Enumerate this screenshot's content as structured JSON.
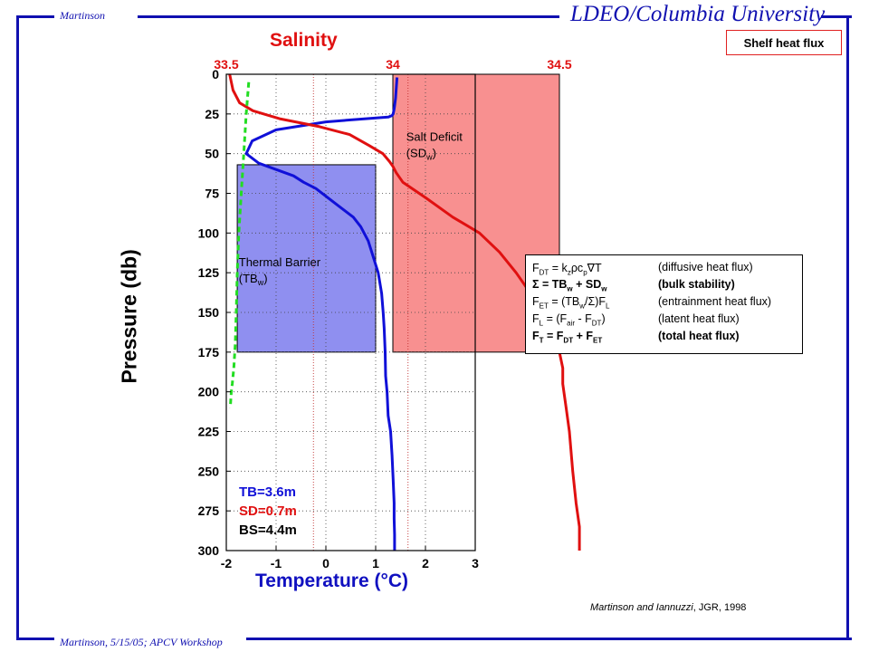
{
  "header": {
    "author": "Martinson",
    "institution": "LDEO/Columbia University",
    "tag": "Shelf heat flux"
  },
  "footer": {
    "text": "Martinson, 5/15/05; APCV Workshop"
  },
  "citation": {
    "authors": "Martinson and Iannuzzi",
    "journal_year": ", JGR, 1998"
  },
  "equations": [
    {
      "lhs_parts": [
        "F",
        {
          "sub": "DT"
        },
        "  =  k",
        {
          "sub": "z"
        },
        "ρc",
        {
          "sub": "p"
        },
        "∇T"
      ],
      "rhs": "(diffusive heat flux)",
      "bold": false
    },
    {
      "lhs_parts": [
        "Σ  =  TB",
        {
          "sub": "w"
        },
        " + SD",
        {
          "sub": "w"
        }
      ],
      "rhs": "(bulk stability)",
      "bold": true
    },
    {
      "lhs_parts": [
        "F",
        {
          "sub": "ET"
        },
        "  =  (TB",
        {
          "sub": "w"
        },
        "/Σ)F",
        {
          "sub": "L"
        }
      ],
      "rhs": "(entrainment heat flux)",
      "bold": false
    },
    {
      "lhs_parts": [
        "F",
        {
          "sub": "L"
        },
        "  =  (F",
        {
          "sub": "air"
        },
        " - F",
        {
          "sub": "DT"
        },
        ")"
      ],
      "rhs": "(latent heat flux)",
      "bold": false
    },
    {
      "lhs_parts": [
        "F",
        {
          "sub": "T"
        },
        "  =  F",
        {
          "sub": "DT"
        },
        " + F",
        {
          "sub": "ET"
        }
      ],
      "rhs": "(total heat flux)",
      "bold": true
    }
  ],
  "colors": {
    "frame": "#1010b0",
    "temperature": "#1010d8",
    "salinity": "#e01010",
    "freezing": "#22dd22",
    "salt_fill": "#f89090",
    "thermal_fill": "#8f8ff0"
  },
  "chart_data": {
    "type": "line",
    "title": "Salinity",
    "xlabel": "Temperature (°C)",
    "ylabel": "Pressure (db)",
    "x_ticks": [
      "-2",
      "-1",
      "0",
      "1",
      "2",
      "3"
    ],
    "top_ticks": [
      "33.5",
      "34",
      "34.5"
    ],
    "y_ticks": [
      "0",
      "25",
      "50",
      "75",
      "100",
      "125",
      "150",
      "175",
      "200",
      "225",
      "250",
      "275",
      "300"
    ],
    "xlim": [
      -2,
      3
    ],
    "ylim": [
      300,
      0
    ],
    "salinity_xlim": [
      33.5,
      34.6
    ],
    "grid": true,
    "series": [
      {
        "axis": "temperature",
        "x": [
          1.43,
          1.41,
          1.4,
          1.38,
          1.37,
          1.35,
          1.33,
          1.25,
          0.8,
          0.0,
          -1.0,
          -1.48,
          -1.6,
          -1.35,
          -1.0,
          -0.65,
          -0.45,
          -0.2,
          0.05,
          0.3,
          0.55,
          0.7,
          0.85,
          0.95,
          1.05,
          1.12,
          1.15,
          1.17,
          1.19,
          1.2,
          1.23,
          1.25,
          1.3,
          1.33,
          1.35,
          1.37,
          1.37,
          1.38,
          1.38
        ],
        "y": [
          2,
          10,
          15,
          20,
          22,
          25,
          26,
          27,
          28,
          30,
          35,
          42,
          50,
          56,
          60,
          64,
          68,
          72,
          78,
          84,
          90,
          96,
          105,
          115,
          125,
          138,
          150,
          160,
          175,
          190,
          200,
          215,
          225,
          240,
          255,
          270,
          280,
          290,
          300
        ]
      },
      {
        "axis": "salinity",
        "x": [
          33.51,
          33.52,
          33.54,
          33.58,
          33.66,
          33.78,
          33.87,
          33.93,
          33.97,
          33.99,
          34.0,
          34.01,
          34.03,
          34.1,
          34.18,
          34.26,
          34.32,
          34.37,
          34.42,
          34.46,
          34.48,
          34.5,
          34.51,
          34.51,
          34.52,
          34.53,
          34.54,
          34.55,
          34.56,
          34.56
        ],
        "y": [
          0,
          10,
          18,
          23,
          28,
          33,
          38,
          45,
          50,
          55,
          58,
          62,
          68,
          78,
          90,
          100,
          112,
          125,
          140,
          155,
          165,
          175,
          185,
          195,
          210,
          225,
          250,
          270,
          285,
          300
        ]
      },
      {
        "axis": "temperature",
        "x": [
          -1.55,
          -1.6,
          -1.65,
          -1.7,
          -1.75,
          -1.78,
          -1.8,
          -1.82,
          -1.85,
          -1.88,
          -1.9,
          -1.92
        ],
        "y": [
          5,
          25,
          50,
          75,
          100,
          125,
          150,
          170,
          185,
          195,
          200,
          210
        ]
      }
    ],
    "regions": [
      {
        "label": "Salt Deficit",
        "sublabel": "(SD",
        "subscript": "w",
        "close": ")",
        "axis": "salinity",
        "x_range": [
          34.0,
          34.5
        ],
        "y_range": [
          0,
          175
        ]
      },
      {
        "label": "Thermal Barrier",
        "sublabel": "(TB",
        "subscript": "w",
        "close": ")",
        "axis": "temperature",
        "x_range": [
          -1.78,
          1.0
        ],
        "y_range": [
          57,
          175
        ]
      }
    ],
    "reference_lines": [
      {
        "axis": "temperature",
        "x": -0.25
      },
      {
        "axis": "temperature",
        "x": 1.65
      }
    ],
    "annotations": [
      {
        "text": "TB=3.6m",
        "color": "#1010d8"
      },
      {
        "text": "SD=0.7m",
        "color": "#e01010"
      },
      {
        "text": "BS=4.4m",
        "color": "#000000"
      }
    ]
  }
}
